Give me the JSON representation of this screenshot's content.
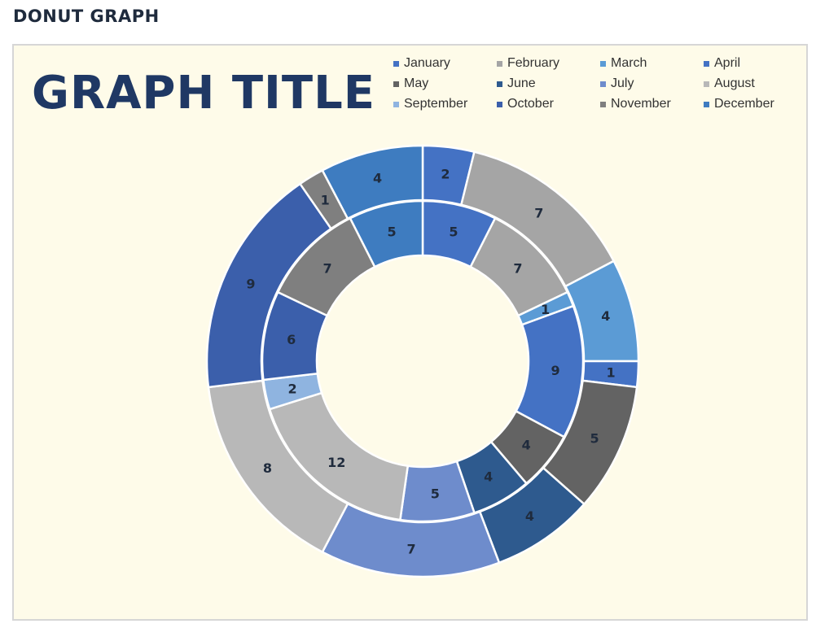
{
  "page_heading": "DONUT GRAPH",
  "chart_data": {
    "type": "donut",
    "title": "GRAPH TITLE",
    "legend_position": "top-right",
    "categories": [
      "January",
      "February",
      "March",
      "April",
      "May",
      "June",
      "July",
      "August",
      "September",
      "October",
      "November",
      "December"
    ],
    "colors": [
      "#4472c4",
      "#a5a5a5",
      "#5b9bd5",
      "#4472c4",
      "#636363",
      "#2e5a8e",
      "#6e8ccc",
      "#b8b8b8",
      "#8fb4e0",
      "#3b5fab",
      "#7f7f7f",
      "#3e7cc0"
    ],
    "series": [
      {
        "values": [
          5,
          7,
          1,
          9,
          4,
          4,
          5,
          12,
          2,
          6,
          7,
          5
        ]
      },
      {
        "values": [
          2,
          7,
          4,
          1,
          5,
          4,
          7,
          8,
          0,
          9,
          1,
          4
        ]
      }
    ]
  }
}
